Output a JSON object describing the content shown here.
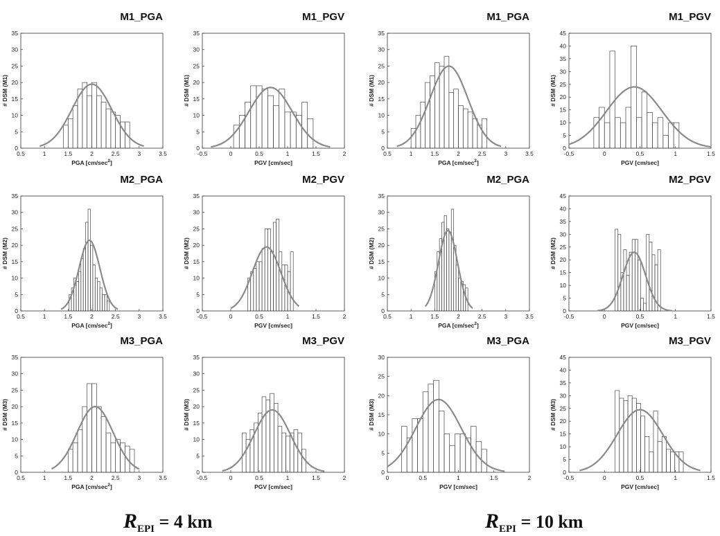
{
  "footer": [
    {
      "symbol": "R",
      "subscript": "EPI",
      "value": "= 4 km"
    },
    {
      "symbol": "R",
      "subscript": "EPI",
      "value": "= 10 km"
    }
  ],
  "colors": {
    "bars": "#444444",
    "fit_curve": "#8a8a8a",
    "axes": "#333333"
  },
  "chart_data": [
    {
      "type": "bar",
      "title": "M1_PGA",
      "xlabel": "PGA [cm/sec",
      "xlabel_sup": "2",
      "xlabel_tail": "]",
      "ylabel": "# DSM (M1)",
      "xlim": [
        0.5,
        3.5
      ],
      "ylim": [
        0,
        35
      ],
      "xticks": [
        "0.5",
        "1",
        "1.5",
        "2",
        "2.5",
        "3",
        "3.5"
      ],
      "yticks": [
        "0",
        "5",
        "10",
        "15",
        "20",
        "25",
        "30",
        "35"
      ],
      "bin_start": 1.4,
      "bin_width": 0.1,
      "values": [
        7,
        9,
        13,
        18,
        20,
        16,
        20,
        16,
        14,
        12,
        11,
        10,
        8,
        8
      ],
      "fit": {
        "mean": 2.0,
        "sd": 0.42,
        "peak": 19.5,
        "range": [
          0.9,
          3.1
        ]
      }
    },
    {
      "type": "bar",
      "title": "M1_PGV",
      "xlabel": "PGV [cm/sec]",
      "ylabel": "# DSM (M1)",
      "xlim": [
        -0.5,
        2
      ],
      "ylim": [
        0,
        35
      ],
      "xticks": [
        "-0.5",
        "0",
        "0.5",
        "1",
        "1.5",
        "2"
      ],
      "yticks": [
        "0",
        "5",
        "10",
        "15",
        "20",
        "25",
        "30",
        "35"
      ],
      "bin_start": 0.05,
      "bin_width": 0.1,
      "values": [
        7,
        10,
        14,
        19,
        19,
        18,
        16,
        13,
        18,
        11,
        11,
        10,
        14,
        9
      ],
      "fit": {
        "mean": 0.7,
        "sd": 0.38,
        "peak": 18.5,
        "range": [
          -0.35,
          1.75
        ]
      }
    },
    {
      "type": "bar",
      "title": "M1_PGA",
      "xlabel": "PGA [cm/sec",
      "xlabel_sup": "2",
      "xlabel_tail": "]",
      "ylabel": "# DSM (M1)",
      "xlim": [
        0.5,
        3.5
      ],
      "ylim": [
        0,
        35
      ],
      "xticks": [
        "0.5",
        "1",
        "1.5",
        "2",
        "2.5",
        "3",
        "3.5"
      ],
      "yticks": [
        "0",
        "5",
        "10",
        "15",
        "20",
        "25",
        "30",
        "35"
      ],
      "bin_start": 1.0,
      "bin_width": 0.1,
      "values": [
        6,
        10,
        14,
        20,
        22,
        26,
        25,
        28,
        17,
        18,
        13,
        12,
        11,
        9,
        7,
        9
      ],
      "fit": {
        "mean": 1.8,
        "sd": 0.4,
        "peak": 25,
        "range": [
          0.7,
          2.9
        ]
      }
    },
    {
      "type": "bar",
      "title": "M1_PGV",
      "xlabel": "PGV [cm/sec]",
      "ylabel": "# DSM (M1)",
      "xlim": [
        -0.5,
        1.5
      ],
      "ylim": [
        0,
        45
      ],
      "xticks": [
        "-0.5",
        "0",
        "0.5",
        "1",
        "1.5"
      ],
      "yticks": [
        "0",
        "5",
        "10",
        "15",
        "20",
        "25",
        "30",
        "35",
        "40",
        "45"
      ],
      "bin_start": -0.15,
      "bin_width": 0.075,
      "values": [
        12,
        16,
        10,
        38,
        12,
        10,
        16,
        40,
        12,
        22,
        14,
        10,
        12,
        5,
        10,
        10
      ],
      "fit": {
        "mean": 0.42,
        "sd": 0.39,
        "peak": 24,
        "range": [
          -0.5,
          1.5
        ]
      }
    },
    {
      "type": "bar",
      "title": "M2_PGA",
      "xlabel": "PGA [cm/sec",
      "xlabel_sup": "2",
      "xlabel_tail": "]",
      "ylabel": "# DSM (M2)",
      "xlim": [
        0.5,
        3.5
      ],
      "ylim": [
        0,
        35
      ],
      "xticks": [
        "0.5",
        "1",
        "1.5",
        "2",
        "2.5",
        "3",
        "3.5"
      ],
      "yticks": [
        "0",
        "5",
        "10",
        "15",
        "20",
        "25",
        "30",
        "35"
      ],
      "bin_start": 1.52,
      "bin_width": 0.05,
      "values": [
        5,
        7,
        10,
        9,
        12,
        16,
        19,
        27,
        31,
        20,
        14,
        10,
        9,
        7,
        5,
        5,
        3
      ],
      "fit": {
        "mean": 1.95,
        "sd": 0.22,
        "peak": 21.5,
        "range": [
          1.35,
          2.55
        ]
      }
    },
    {
      "type": "bar",
      "title": "M2_PGV",
      "xlabel": "PGV [cm/sec]",
      "ylabel": "# DSM (M2)",
      "xlim": [
        -0.5,
        2
      ],
      "ylim": [
        0,
        35
      ],
      "xticks": [
        "-0.5",
        "0",
        "0.5",
        "1",
        "1.5",
        "2"
      ],
      "yticks": [
        "0",
        "5",
        "10",
        "15",
        "20",
        "25",
        "30",
        "35"
      ],
      "bin_start": 0.3,
      "bin_width": 0.05,
      "values": [
        10,
        12,
        13,
        15,
        15,
        19,
        25,
        25,
        18,
        27,
        28,
        18,
        14,
        14,
        12,
        18
      ],
      "fit": {
        "mean": 0.63,
        "sd": 0.25,
        "peak": 19.5,
        "range": [
          0,
          1.2
        ]
      }
    },
    {
      "type": "bar",
      "title": "M2_PGA",
      "xlabel": "PGA [cm/sec",
      "xlabel_sup": "2",
      "xlabel_tail": "]",
      "ylabel": "# DSM (M2)",
      "xlim": [
        0.5,
        3.5
      ],
      "ylim": [
        0,
        35
      ],
      "xticks": [
        "0.5",
        "1",
        "1.5",
        "2",
        "2.5",
        "3",
        "3.5"
      ],
      "yticks": [
        "0",
        "5",
        "10",
        "15",
        "20",
        "25",
        "30",
        "35"
      ],
      "bin_start": 1.5,
      "bin_width": 0.05,
      "values": [
        12,
        18,
        22,
        27,
        29,
        25,
        24,
        31,
        20,
        14,
        10,
        9,
        8,
        7
      ],
      "fit": {
        "mean": 1.78,
        "sd": 0.2,
        "peak": 24.5,
        "range": [
          1.3,
          2.3
        ]
      }
    },
    {
      "type": "bar",
      "title": "M2_PGV",
      "xlabel": "PGV [cm/sec]",
      "ylabel": "# DSM (M2)",
      "xlim": [
        -0.5,
        1.5
      ],
      "ylim": [
        0,
        45
      ],
      "xticks": [
        "-0.5",
        "0",
        "0.5",
        "1",
        "1.5"
      ],
      "yticks": [
        "0",
        "5",
        "10",
        "15",
        "20",
        "25",
        "30",
        "35",
        "40",
        "45"
      ],
      "bin_start": 0.15,
      "bin_width": 0.04,
      "values": [
        32,
        30,
        15,
        24,
        14,
        23,
        28,
        28,
        20,
        5,
        3,
        30,
        27,
        22,
        18,
        24
      ],
      "fit": {
        "mean": 0.42,
        "sd": 0.16,
        "peak": 23,
        "range": [
          -0.1,
          0.95
        ]
      }
    },
    {
      "type": "bar",
      "title": "M3_PGA",
      "xlabel": "PGA [cm/sec",
      "xlabel_sup": "2",
      "xlabel_tail": "]",
      "ylabel": "# DSM (M3)",
      "xlim": [
        0.5,
        3.5
      ],
      "ylim": [
        0,
        35
      ],
      "xticks": [
        "0.5",
        "1",
        "1.5",
        "2",
        "2.5",
        "3",
        "3.5"
      ],
      "yticks": [
        "0",
        "5",
        "10",
        "15",
        "20",
        "25",
        "30",
        "35"
      ],
      "bin_start": 1.5,
      "bin_width": 0.1,
      "values": [
        7,
        9,
        13,
        20,
        27,
        27,
        20,
        17,
        12,
        9,
        10,
        9,
        8,
        7
      ],
      "fit": {
        "mean": 2.07,
        "sd": 0.38,
        "peak": 20,
        "range": [
          1.15,
          3.0
        ]
      }
    },
    {
      "type": "bar",
      "title": "M3_PGV",
      "xlabel": "PGV [cm/sec]",
      "ylabel": "# DSM (M3)",
      "xlim": [
        -0.5,
        2
      ],
      "ylim": [
        0,
        35
      ],
      "xticks": [
        "-0.5",
        "0",
        "0.5",
        "1",
        "1.5",
        "2"
      ],
      "yticks": [
        "0",
        "5",
        "10",
        "15",
        "20",
        "25",
        "30",
        "35"
      ],
      "bin_start": 0.2,
      "bin_width": 0.07,
      "values": [
        12,
        10,
        13,
        15,
        18,
        23,
        22,
        24,
        21,
        14,
        12,
        11,
        12,
        13,
        12,
        7
      ],
      "fit": {
        "mean": 0.73,
        "sd": 0.32,
        "peak": 19,
        "range": [
          -0.15,
          1.65
        ]
      }
    },
    {
      "type": "bar",
      "title": "M3_PGA",
      "xlabel": "PGV [cm/sec]",
      "ylabel": "# DSM (M3)",
      "xlim": [
        0,
        2
      ],
      "ylim": [
        0,
        30
      ],
      "xticks": [
        "0",
        "0.5",
        "1",
        "1.5",
        "2"
      ],
      "yticks": [
        "0",
        "5",
        "10",
        "15",
        "20",
        "25",
        "30"
      ],
      "bin_start": 0.2,
      "bin_width": 0.075,
      "values": [
        12,
        9,
        14,
        14,
        21,
        23,
        24,
        16,
        10,
        7,
        10,
        10,
        9,
        12,
        8,
        6
      ],
      "fit": {
        "mean": 0.72,
        "sd": 0.32,
        "peak": 19,
        "range": [
          0,
          1.65
        ]
      }
    },
    {
      "type": "bar",
      "title": "M3_PGV",
      "xlabel": "PGV [cm/sec]",
      "ylabel": "# DSM (M3)",
      "xlim": [
        -0.5,
        1.5
      ],
      "ylim": [
        0,
        45
      ],
      "xticks": [
        "-0.5",
        "0",
        "0.5",
        "1",
        "1.5"
      ],
      "yticks": [
        "0",
        "5",
        "10",
        "15",
        "20",
        "25",
        "30",
        "35",
        "40",
        "45"
      ],
      "bin_start": 0.15,
      "bin_width": 0.06,
      "values": [
        32,
        29,
        28,
        30,
        29,
        27,
        22,
        14,
        8,
        24,
        12,
        14,
        9,
        8,
        8,
        8
      ],
      "fit": {
        "mean": 0.5,
        "sd": 0.32,
        "peak": 24.5,
        "range": [
          -0.35,
          1.35
        ]
      }
    }
  ]
}
